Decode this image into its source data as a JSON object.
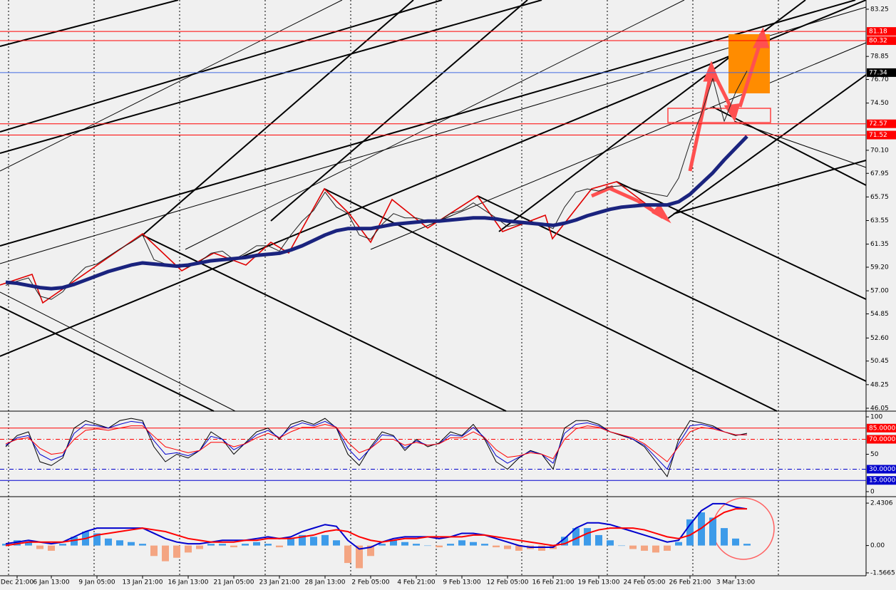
{
  "chart_data": [
    {
      "type": "line",
      "categories": [
        null,
        "Dec 21:00",
        null,
        null,
        "6 Jan 13:00",
        null,
        null,
        null,
        "9 Jan 05:00",
        null,
        null,
        null,
        "13 Jan 21:00",
        null,
        null,
        null,
        "16 Jan 13:00",
        null,
        null,
        null,
        "21 Jan 05:00",
        null,
        null,
        null,
        "23 Jan 21:00",
        null,
        null,
        null,
        "28 Jan 13:00",
        null,
        null,
        null,
        "2 Feb 05:00",
        null,
        null,
        null,
        "4 Feb 21:00",
        null,
        null,
        null,
        "9 Feb 13:00",
        null,
        null,
        null,
        "12 Feb 05:00",
        null,
        null,
        null,
        "16 Feb 21:00",
        null,
        null,
        null,
        "19 Feb 13:00",
        null,
        null,
        null,
        "24 Feb 05:00",
        null,
        null,
        null,
        "26 Feb 21:00",
        null,
        null,
        null,
        "3 Mar 13:00",
        null
      ],
      "series": [
        {
          "color": "#202020",
          "values": [
            57.5,
            57.9,
            58.2,
            56.5,
            56.2,
            56.9,
            58.2,
            59.2,
            59.5,
            60.2,
            60.9,
            61.5,
            62.2,
            59.9,
            59.5,
            59.4,
            59.2,
            59.7,
            60.5,
            60.7,
            59.9,
            60.5,
            61.2,
            61.2,
            60.7,
            62.2,
            63.5,
            64.5,
            66.2,
            64.8,
            64.2,
            62.2,
            61.8,
            63.2,
            64.2,
            63.8,
            63.8,
            63.5,
            63.5,
            64.2,
            64.5,
            65.2,
            64.5,
            63.8,
            63.0,
            63.2,
            63.4,
            63.2,
            62.8,
            64.8,
            66.2,
            66.5,
            66.3,
            66.7,
            66.8,
            66.5,
            66.2,
            66.0,
            65.8,
            67.5,
            70.8,
            73.5,
            76.8,
            72.8,
            75.5,
            77.5
          ]
        },
        {
          "color": "#1a237e",
          "values": [
            57.8,
            57.7,
            57.5,
            57.3,
            57.2,
            57.3,
            57.6,
            58.0,
            58.4,
            58.8,
            59.1,
            59.4,
            59.6,
            59.5,
            59.4,
            59.3,
            59.4,
            59.6,
            59.8,
            59.9,
            60.0,
            60.1,
            60.3,
            60.4,
            60.5,
            60.8,
            61.2,
            61.7,
            62.2,
            62.6,
            62.8,
            62.8,
            62.8,
            63.0,
            63.2,
            63.3,
            63.4,
            63.5,
            63.5,
            63.6,
            63.7,
            63.8,
            63.8,
            63.7,
            63.5,
            63.4,
            63.3,
            63.2,
            63.1,
            63.3,
            63.6,
            64.0,
            64.3,
            64.6,
            64.8,
            64.9,
            65.0,
            65.0,
            65.0,
            65.3,
            66.0,
            67.0,
            68.0,
            69.2,
            70.3,
            71.4
          ]
        }
      ],
      "ylim": [
        45.78,
        84.11
      ],
      "yticks": [
        83.25,
        78.85,
        {
          "value": 76.7,
          "label": "76.70"
        },
        {
          "value": 74.5,
          "label": "74.50"
        },
        {
          "value": 70.1,
          "label": "70.10"
        },
        67.95,
        65.75,
        63.55,
        61.35,
        {
          "value": 59.2,
          "label": "59.20"
        },
        {
          "value": 57,
          "label": "57.00"
        },
        54.85,
        {
          "value": 52.6,
          "label": "52.60"
        },
        50.45,
        48.25,
        46.05
      ],
      "levels": [
        {
          "value": 81.18,
          "label": "81.18",
          "color": "#ff0000",
          "tag_color": "#ff0000"
        },
        {
          "value": 80.32,
          "label": "80.32",
          "color": "#ff0000",
          "tag_color": "#ff0000"
        },
        {
          "value": 77.34,
          "label": "77.34",
          "color": "#4169e1",
          "tag_color": "#000000"
        },
        {
          "value": 72.57,
          "label": "72.57",
          "color": "#ff0000",
          "tag_color": "#ff0000"
        },
        {
          "value": 71.52,
          "label": "71.52",
          "color": "#ff0000",
          "tag_color": "#ff0000"
        }
      ]
    },
    {
      "type": "line",
      "series": [
        {
          "color": "#000000",
          "values": [
            60,
            75,
            80,
            40,
            35,
            45,
            85,
            95,
            90,
            85,
            95,
            98,
            95,
            60,
            40,
            50,
            45,
            55,
            80,
            70,
            50,
            65,
            80,
            85,
            70,
            90,
            95,
            90,
            98,
            85,
            50,
            35,
            60,
            80,
            75,
            55,
            70,
            60,
            65,
            80,
            75,
            90,
            70,
            40,
            30,
            45,
            55,
            50,
            30,
            85,
            95,
            95,
            90,
            80,
            75,
            70,
            60,
            40,
            20,
            70,
            95,
            92,
            88,
            80,
            75,
            78
          ]
        },
        {
          "color": "#0000cd",
          "values": [
            62,
            72,
            75,
            50,
            42,
            48,
            78,
            90,
            88,
            85,
            90,
            94,
            92,
            68,
            50,
            52,
            48,
            55,
            74,
            70,
            56,
            64,
            76,
            82,
            72,
            86,
            92,
            88,
            94,
            86,
            58,
            42,
            58,
            76,
            74,
            58,
            68,
            62,
            64,
            76,
            74,
            86,
            72,
            48,
            38,
            46,
            54,
            50,
            38,
            78,
            90,
            92,
            88,
            80,
            76,
            70,
            62,
            46,
            30,
            64,
            88,
            90,
            86,
            80,
            76,
            76
          ]
        },
        {
          "color": "#ff0000",
          "values": [
            64,
            70,
            72,
            58,
            50,
            52,
            70,
            82,
            84,
            82,
            85,
            88,
            88,
            74,
            60,
            56,
            52,
            55,
            66,
            66,
            60,
            64,
            72,
            78,
            72,
            80,
            86,
            86,
            90,
            86,
            66,
            52,
            58,
            70,
            70,
            62,
            66,
            62,
            64,
            72,
            72,
            80,
            72,
            56,
            46,
            48,
            52,
            50,
            44,
            70,
            84,
            88,
            86,
            80,
            76,
            72,
            64,
            52,
            40,
            60,
            80,
            86,
            84,
            80,
            76,
            76
          ]
        }
      ],
      "ylim": [
        -6.7,
        106.7
      ],
      "yticks": [
        100,
        50,
        0
      ],
      "levels": [
        {
          "value": 85,
          "label": "85.0000",
          "color": "#ff0000",
          "tag_color": "#ff0000"
        },
        {
          "value": 70,
          "label": "70.0000",
          "color": "#ff0000",
          "tag_color": "#ff0000"
        },
        {
          "value": 30,
          "label": "30.0000",
          "color": "#0000cd",
          "tag_color": "#0000cd"
        },
        {
          "value": 15,
          "label": "15.0000",
          "color": "#0000cd",
          "tag_color": "#0000cd"
        }
      ]
    },
    {
      "type": "macd",
      "histogram": {
        "color": "#3d9be9",
        "negative_color": "#f4a582",
        "values": [
          0.1,
          0.3,
          0.2,
          -0.2,
          -0.3,
          0.1,
          0.5,
          0.8,
          0.7,
          0.4,
          0.3,
          0.2,
          0.1,
          -0.6,
          -0.9,
          -0.7,
          -0.4,
          -0.2,
          0.1,
          0.1,
          -0.1,
          0.1,
          0.2,
          0.1,
          -0.1,
          0.4,
          0.6,
          0.5,
          0.6,
          0.3,
          -1.0,
          -1.3,
          -0.6,
          0.1,
          0.3,
          0.2,
          0.1,
          0.0,
          -0.1,
          0.1,
          0.3,
          0.2,
          0.1,
          -0.1,
          -0.2,
          -0.3,
          -0.2,
          -0.3,
          -0.2,
          0.5,
          1.0,
          1.0,
          0.6,
          0.3,
          0.0,
          -0.2,
          -0.3,
          -0.4,
          -0.3,
          0.2,
          1.5,
          1.9,
          1.6,
          1.0,
          0.4,
          0.1
        ]
      },
      "series": [
        {
          "color": "#0000cd",
          "values": [
            0.1,
            0.2,
            0.3,
            0.2,
            0.1,
            0.2,
            0.5,
            0.8,
            1.0,
            1.0,
            1.0,
            1.0,
            1.0,
            0.7,
            0.4,
            0.2,
            0.1,
            0.1,
            0.2,
            0.3,
            0.3,
            0.3,
            0.4,
            0.5,
            0.4,
            0.5,
            0.8,
            1.0,
            1.2,
            1.1,
            0.3,
            -0.2,
            -0.1,
            0.2,
            0.4,
            0.5,
            0.5,
            0.5,
            0.4,
            0.5,
            0.7,
            0.7,
            0.6,
            0.4,
            0.2,
            0.0,
            -0.1,
            -0.1,
            -0.1,
            0.4,
            1.0,
            1.3,
            1.3,
            1.2,
            1.0,
            0.8,
            0.6,
            0.4,
            0.2,
            0.3,
            1.2,
            2.0,
            2.4,
            2.4,
            2.2,
            2.1
          ]
        },
        {
          "color": "#ff0000",
          "values": [
            0.0,
            0.1,
            0.2,
            0.2,
            0.2,
            0.2,
            0.3,
            0.4,
            0.6,
            0.7,
            0.8,
            0.9,
            1.0,
            0.9,
            0.8,
            0.6,
            0.4,
            0.3,
            0.2,
            0.2,
            0.2,
            0.3,
            0.3,
            0.4,
            0.4,
            0.4,
            0.5,
            0.6,
            0.8,
            0.9,
            0.8,
            0.5,
            0.3,
            0.2,
            0.3,
            0.4,
            0.4,
            0.5,
            0.5,
            0.5,
            0.5,
            0.6,
            0.6,
            0.5,
            0.4,
            0.3,
            0.2,
            0.1,
            0.0,
            0.1,
            0.4,
            0.7,
            0.9,
            1.0,
            1.0,
            1.0,
            0.9,
            0.7,
            0.5,
            0.4,
            0.6,
            1.0,
            1.5,
            1.9,
            2.1,
            2.1
          ]
        }
      ],
      "ylim": [
        -1.65,
        2.72
      ],
      "yticks": [
        2.4306,
        {
          "value": 0,
          "label": "0.00"
        },
        -1.5665
      ]
    }
  ]
}
